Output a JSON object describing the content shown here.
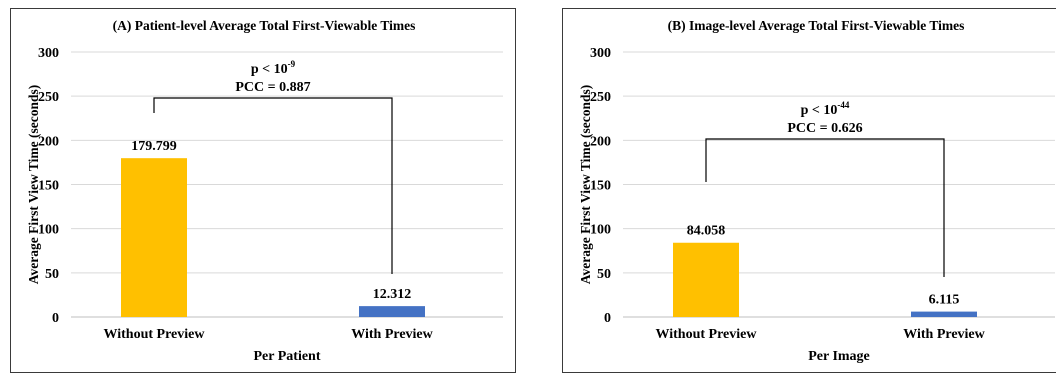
{
  "chart_data": [
    {
      "type": "bar",
      "title": "(A) Patient-level Average Total First-Viewable Times",
      "xlabel": "Per Patient",
      "ylabel": "Average First View Time (seconds)",
      "ylim": [
        0,
        300
      ],
      "yticks": [
        "0",
        "50",
        "100",
        "150",
        "200",
        "250",
        "300"
      ],
      "grid": true,
      "categories": [
        "Without Preview",
        "With Preview"
      ],
      "values": [
        179.799,
        12.312
      ],
      "value_labels": [
        "179.799",
        "12.312"
      ],
      "colors": [
        "#FFC000",
        "#4472C4"
      ],
      "annotation": {
        "p_base": "p < 10",
        "p_exp": "-9",
        "pcc": "PCC = 0.887"
      }
    },
    {
      "type": "bar",
      "title": "(B) Image-level Average Total First-Viewable Times",
      "xlabel": "Per Image",
      "ylabel": "Average First View Time (seconds)",
      "ylim": [
        0,
        300
      ],
      "yticks": [
        "0",
        "50",
        "100",
        "150",
        "200",
        "250",
        "300"
      ],
      "grid": true,
      "categories": [
        "Without Preview",
        "With Preview"
      ],
      "values": [
        84.058,
        6.115
      ],
      "value_labels": [
        "84.058",
        "6.115"
      ],
      "colors": [
        "#FFC000",
        "#4472C4"
      ],
      "annotation": {
        "p_base": "p < 10",
        "p_exp": "-44",
        "pcc": "PCC = 0.626"
      }
    }
  ]
}
